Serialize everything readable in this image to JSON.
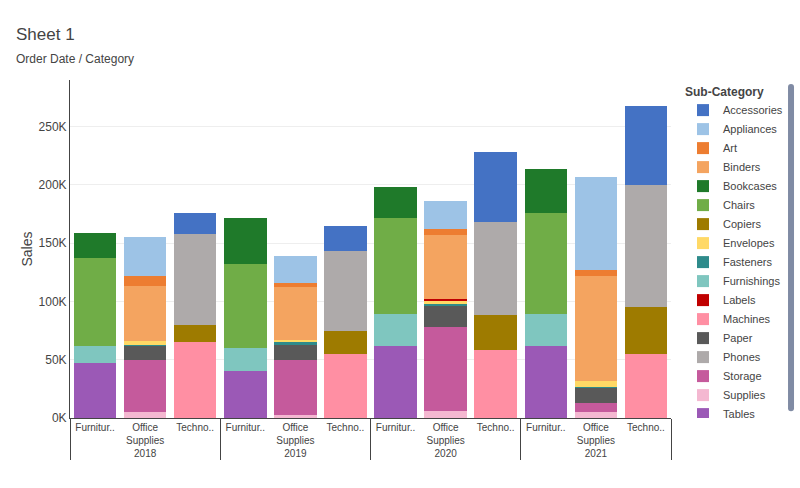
{
  "chart_data": {
    "type": "bar",
    "title": "Sheet 1",
    "subtitle": "Order Date / Category",
    "ylabel": "Sales",
    "legend_title": "Sub-Category",
    "stacked": true,
    "grid": true,
    "legend": "right",
    "categories": [
      [
        "2018",
        "Furnitur.."
      ],
      [
        "2018",
        "Office\nSupplies"
      ],
      [
        "2018",
        "Techno.."
      ],
      [
        "2019",
        "Furnitur.."
      ],
      [
        "2019",
        "Office\nSupplies"
      ],
      [
        "2019",
        "Techno.."
      ],
      [
        "2020",
        "Furnitur.."
      ],
      [
        "2020",
        "Office\nSupplies"
      ],
      [
        "2020",
        "Techno.."
      ],
      [
        "2021",
        "Furnitur.."
      ],
      [
        "2021",
        "Office\nSupplies"
      ],
      [
        "2021",
        "Techno.."
      ]
    ],
    "series": [
      {
        "name": "Tables",
        "color": "#9B59B6",
        "values": [
          47000,
          null,
          null,
          40000,
          null,
          null,
          62000,
          null,
          null,
          62000,
          null,
          null
        ]
      },
      {
        "name": "Supplies",
        "color": "#F4B8D1",
        "values": [
          null,
          5000,
          null,
          null,
          3000,
          null,
          null,
          6000,
          null,
          null,
          5000,
          null
        ]
      },
      {
        "name": "Storage",
        "color": "#C55A9C",
        "values": [
          null,
          45000,
          null,
          null,
          47000,
          null,
          null,
          72000,
          null,
          null,
          8000,
          null
        ]
      },
      {
        "name": "Furnishings",
        "color": "#7FC6BF",
        "values": [
          15000,
          null,
          null,
          20000,
          null,
          null,
          27000,
          null,
          null,
          27000,
          null,
          null
        ]
      },
      {
        "name": "Chairs",
        "color": "#70AD47",
        "values": [
          75000,
          null,
          null,
          72000,
          null,
          null,
          83000,
          null,
          null,
          87000,
          null,
          null
        ]
      },
      {
        "name": "Paper",
        "color": "#595959",
        "values": [
          null,
          12000,
          null,
          null,
          13000,
          null,
          null,
          18000,
          null,
          null,
          13000,
          null
        ]
      },
      {
        "name": "Fasteners",
        "color": "#2E8B8B",
        "values": [
          null,
          1000,
          null,
          null,
          2000,
          null,
          null,
          2000,
          null,
          null,
          1000,
          null
        ]
      },
      {
        "name": "Envelopes",
        "color": "#FFD966",
        "values": [
          null,
          3000,
          null,
          null,
          2000,
          null,
          null,
          2000,
          null,
          null,
          5000,
          null
        ]
      },
      {
        "name": "Labels",
        "color": "#C00000",
        "values": [
          null,
          null,
          null,
          null,
          null,
          null,
          null,
          2000,
          null,
          null,
          null,
          null
        ]
      },
      {
        "name": "Binders",
        "color": "#F4A460",
        "values": [
          null,
          47000,
          null,
          null,
          45000,
          null,
          null,
          55000,
          null,
          null,
          90000,
          null
        ]
      },
      {
        "name": "Machines",
        "color": "#FF8FA3",
        "values": [
          null,
          null,
          65000,
          null,
          null,
          55000,
          null,
          null,
          58000,
          null,
          null,
          55000
        ]
      },
      {
        "name": "Art",
        "color": "#ED7D31",
        "values": [
          null,
          9000,
          null,
          null,
          4000,
          null,
          null,
          5000,
          null,
          null,
          5000,
          null
        ]
      },
      {
        "name": "Appliances",
        "color": "#9DC3E6",
        "values": [
          null,
          33000,
          null,
          null,
          23000,
          null,
          null,
          24000,
          null,
          null,
          80000,
          null
        ]
      },
      {
        "name": "Bookcases",
        "color": "#1F7A2A",
        "values": [
          22000,
          null,
          null,
          40000,
          null,
          null,
          26000,
          null,
          null,
          38000,
          null,
          null
        ]
      },
      {
        "name": "Copiers",
        "color": "#9E7B00",
        "values": [
          null,
          null,
          15000,
          null,
          null,
          20000,
          null,
          null,
          30000,
          null,
          null,
          40000
        ]
      },
      {
        "name": "Phones",
        "color": "#AEAAAA",
        "values": [
          null,
          null,
          78000,
          null,
          null,
          68000,
          null,
          null,
          80000,
          null,
          null,
          105000
        ]
      },
      {
        "name": "Accessories",
        "color": "#4472C4",
        "values": [
          null,
          null,
          18000,
          null,
          null,
          22000,
          null,
          null,
          60000,
          null,
          null,
          68000
        ]
      }
    ],
    "ylim": [
      0,
      290000
    ],
    "yticks": [
      {
        "value": 0,
        "label": "0K"
      },
      {
        "value": 50000,
        "label": "50K"
      },
      {
        "value": 100000,
        "label": "100K"
      },
      {
        "value": 150000,
        "label": "150K"
      },
      {
        "value": 200000,
        "label": "200K"
      },
      {
        "value": 250000,
        "label": "250K"
      }
    ]
  }
}
